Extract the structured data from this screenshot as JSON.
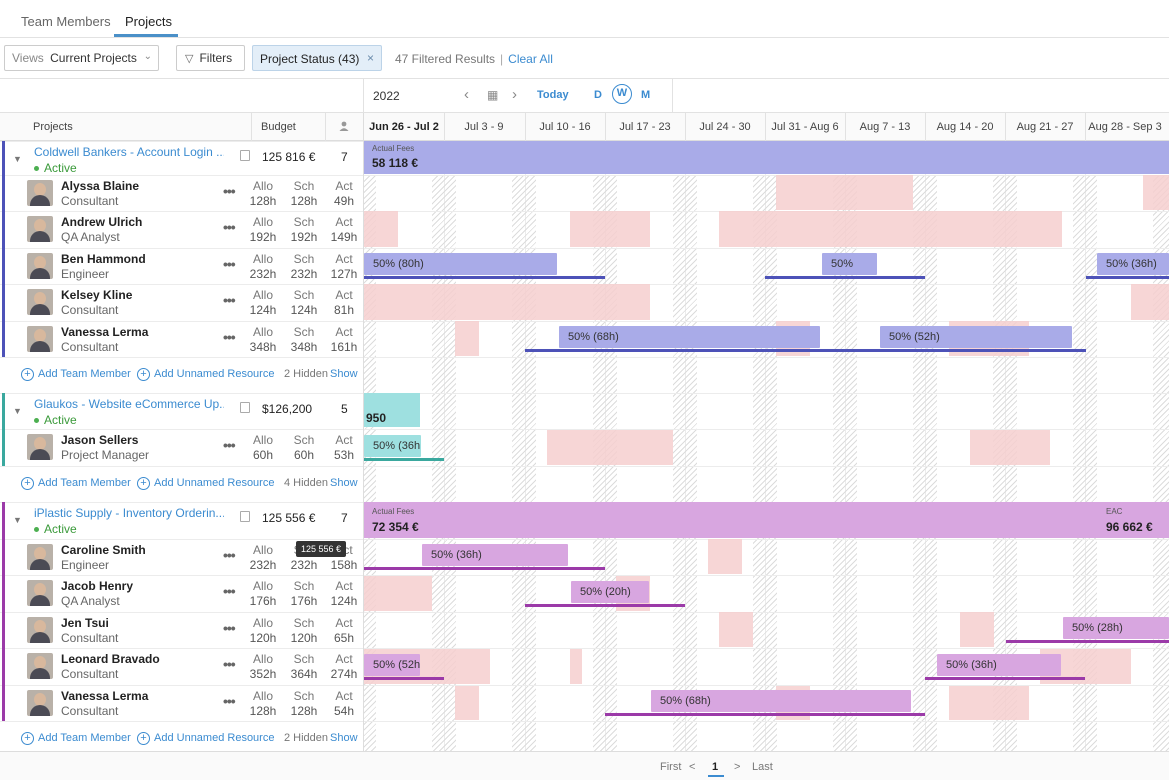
{
  "tabs": [
    {
      "label": "Team Members"
    },
    {
      "label": "Projects"
    }
  ],
  "filterbar": {
    "views_label": "Views",
    "views_value": "Current Projects",
    "filters_label": "Filters",
    "chip_label": "Project Status (43)",
    "results_text": "47 Filtered Results",
    "clear_all": "Clear All"
  },
  "calendar": {
    "year": "2022",
    "today": "Today",
    "mode_d": "D",
    "mode_w": "W",
    "mode_m": "M",
    "weeks": [
      "Jun 26 - Jul 2",
      "Jul 3 - 9",
      "Jul 10 - 16",
      "Jul 17 - 23",
      "Jul 24 - 30",
      "Jul 31 - Aug 6",
      "Aug 7 - 13",
      "Aug 14 - 20",
      "Aug 21 - 27",
      "Aug 28 - Sep 3"
    ]
  },
  "columns": {
    "projects": "Projects",
    "budget": "Budget"
  },
  "stat_labels": {
    "allo": "Allo",
    "sch": "Sch",
    "act": "Act"
  },
  "add_member": "Add Team Member",
  "add_unnamed": "Add Unnamed Resource",
  "show": "Show",
  "projects": [
    {
      "name": "Coldwell Bankers - Account Login ...",
      "status": "Active",
      "budget": "125 816 €",
      "count": "7",
      "color": "#a9abe8",
      "accent": "#4d52b8",
      "band_label": "Actual Fees",
      "band_amount": "58 118 €",
      "hidden": "2 Hidden",
      "members": [
        {
          "name": "Alyssa Blaine",
          "role": "Consultant",
          "allo": "128h",
          "sch": "128h",
          "act": "49h"
        },
        {
          "name": "Andrew Ulrich",
          "role": "QA Analyst",
          "allo": "192h",
          "sch": "192h",
          "act": "149h"
        },
        {
          "name": "Ben Hammond",
          "role": "Engineer",
          "allo": "232h",
          "sch": "232h",
          "act": "127h"
        },
        {
          "name": "Kelsey Kline",
          "role": "Consultant",
          "allo": "124h",
          "sch": "124h",
          "act": "81h"
        },
        {
          "name": "Vanessa Lerma",
          "role": "Consultant",
          "allo": "348h",
          "sch": "348h",
          "act": "161h"
        }
      ]
    },
    {
      "name": "Glaukos - Website eCommerce Up...",
      "status": "Active",
      "budget": "$126,200",
      "count": "5",
      "color": "#9ee0e0",
      "accent": "#3aa89e",
      "band_amount": "950",
      "hidden": "4 Hidden",
      "members": [
        {
          "name": "Jason Sellers",
          "role": "Project Manager",
          "allo": "60h",
          "sch": "60h",
          "act": "53h"
        }
      ]
    },
    {
      "name": "iPlastic Supply - Inventory Orderin...",
      "status": "Active",
      "budget": "125 556 €",
      "count": "7",
      "color": "#d8a6e0",
      "accent": "#9b3aa8",
      "band_label": "Actual Fees",
      "band_amount": "72 354 €",
      "band_label2": "EAC",
      "band_amount2": "96 662 €",
      "hidden": "2 Hidden",
      "tooltip": "125 556 €",
      "members": [
        {
          "name": "Caroline Smith",
          "role": "Engineer",
          "allo": "232h",
          "sch": "232h",
          "act": "158h"
        },
        {
          "name": "Jacob Henry",
          "role": "QA Analyst",
          "allo": "176h",
          "sch": "176h",
          "act": "124h"
        },
        {
          "name": "Jen Tsui",
          "role": "Consultant",
          "allo": "120h",
          "sch": "120h",
          "act": "65h"
        },
        {
          "name": "Leonard Bravado",
          "role": "Consultant",
          "allo": "352h",
          "sch": "364h",
          "act": "274h"
        },
        {
          "name": "Vanessa Lerma",
          "role": "Consultant",
          "allo": "128h",
          "sch": "128h",
          "act": "54h"
        }
      ]
    }
  ],
  "bars": {
    "ben_1": "50% (80h)",
    "ben_2": "50%",
    "ben_3": "50% (36h)",
    "van_1": "50% (68h)",
    "van_2": "50% (52h)",
    "jason_1": "50% (36h",
    "car_1": "50% (36h)",
    "jacob_1": "50% (20h)",
    "jen_1": "50% (28h)",
    "leo_1": "50% (52h",
    "leo_2": "50% (36h)",
    "van2_1": "50% (68h)"
  },
  "pagination": {
    "first": "First",
    "prev": "<",
    "current": "1",
    "next": ">",
    "last": "Last"
  }
}
